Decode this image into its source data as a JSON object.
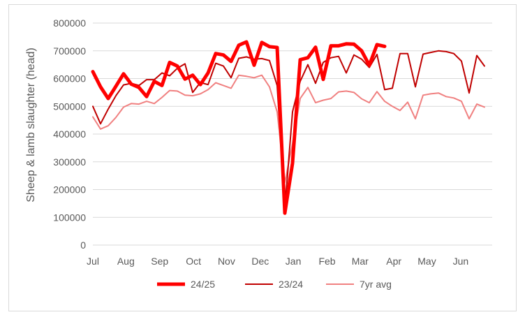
{
  "chart_data": {
    "type": "line",
    "ylabel": "Sheep & lamb slaughter (head)",
    "xlabel": "",
    "ylim": [
      0,
      800000
    ],
    "yticks": [
      0,
      100000,
      200000,
      300000,
      400000,
      500000,
      600000,
      700000,
      800000
    ],
    "ytick_labels": [
      "0",
      "100000",
      "200000",
      "300000",
      "400000",
      "500000",
      "600000",
      "700000",
      "800000"
    ],
    "x_count": 53,
    "month_labels": [
      {
        "label": "Jul",
        "week": 0
      },
      {
        "label": "Aug",
        "week": 4.3
      },
      {
        "label": "Sep",
        "week": 8.7
      },
      {
        "label": "Oct",
        "week": 13.1
      },
      {
        "label": "Nov",
        "week": 17.4
      },
      {
        "label": "Dec",
        "week": 21.8
      },
      {
        "label": "Jan",
        "week": 26.1
      },
      {
        "label": "Feb",
        "week": 30.5
      },
      {
        "label": "Mar",
        "week": 34.8
      },
      {
        "label": "Apr",
        "week": 39.2
      },
      {
        "label": "May",
        "week": 43.5
      },
      {
        "label": "Jun",
        "week": 47.9
      }
    ],
    "legend_position": "bottom",
    "gridlines": "horizontal",
    "series": [
      {
        "name": "24/25",
        "color": "#ff0000",
        "width": 5,
        "values": [
          625000,
          570000,
          528000,
          572000,
          617000,
          580000,
          568000,
          535000,
          590000,
          575000,
          658000,
          645000,
          598000,
          612000,
          578000,
          620000,
          690000,
          685000,
          662000,
          720000,
          732000,
          648000,
          730000,
          715000,
          712000,
          115000,
          295000,
          668000,
          675000,
          713000,
          597000,
          718000,
          718000,
          725000,
          724000,
          700000,
          648000,
          722000,
          716000
        ]
      },
      {
        "name": "23/24",
        "color": "#c00000",
        "width": 2,
        "values": [
          500000,
          437000,
          490000,
          538000,
          577000,
          583000,
          575000,
          596000,
          596000,
          620000,
          610000,
          637000,
          653000,
          550000,
          586000,
          578000,
          655000,
          645000,
          603000,
          673000,
          678000,
          670000,
          672000,
          665000,
          575000,
          130000,
          480000,
          590000,
          650000,
          583000,
          658000,
          675000,
          680000,
          620000,
          685000,
          670000,
          640000,
          687000,
          560000,
          565000,
          690000,
          690000,
          570000,
          688000,
          694000,
          700000,
          697000,
          690000,
          663000,
          548000,
          683000,
          645000
        ]
      },
      {
        "name": "7yr avg",
        "color": "#f08080",
        "width": 2,
        "values": [
          462000,
          418000,
          430000,
          460000,
          497000,
          510000,
          508000,
          518000,
          510000,
          532000,
          557000,
          555000,
          540000,
          538000,
          545000,
          560000,
          585000,
          575000,
          565000,
          612000,
          608000,
          603000,
          612000,
          570000,
          480000,
          225000,
          365000,
          528000,
          568000,
          513000,
          522000,
          528000,
          552000,
          555000,
          550000,
          527000,
          513000,
          553000,
          518000,
          500000,
          485000,
          515000,
          455000,
          540000,
          545000,
          548000,
          535000,
          530000,
          518000,
          455000,
          508000,
          497000
        ]
      }
    ]
  }
}
